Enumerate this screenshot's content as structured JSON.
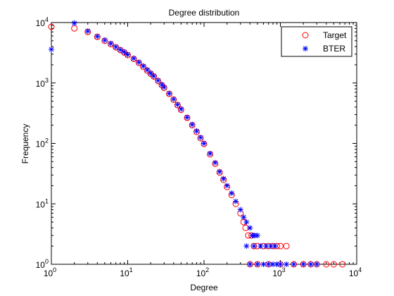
{
  "chart_data": {
    "type": "scatter",
    "title": "Degree distribution",
    "xlabel": "Degree",
    "ylabel": "Frequency",
    "x_scale": "log",
    "y_scale": "log",
    "xlim": [
      1,
      10000
    ],
    "ylim": [
      1,
      10000
    ],
    "grid": false,
    "legend_position": "top-right",
    "x_ticks": [
      {
        "value": 1,
        "base": "10",
        "exp": "0"
      },
      {
        "value": 10,
        "base": "10",
        "exp": "1"
      },
      {
        "value": 100,
        "base": "10",
        "exp": "2"
      },
      {
        "value": 1000,
        "base": "10",
        "exp": "3"
      },
      {
        "value": 10000,
        "base": "10",
        "exp": "4"
      }
    ],
    "y_ticks": [
      {
        "value": 1,
        "base": "10",
        "exp": "0"
      },
      {
        "value": 10,
        "base": "10",
        "exp": "1"
      },
      {
        "value": 100,
        "base": "10",
        "exp": "2"
      },
      {
        "value": 1000,
        "base": "10",
        "exp": "3"
      },
      {
        "value": 10000,
        "base": "10",
        "exp": "4"
      }
    ],
    "series": [
      {
        "name": "Target",
        "marker": "circle",
        "color": "#ff0000",
        "points": [
          [
            1,
            8500
          ],
          [
            2,
            8000
          ],
          [
            3,
            7000
          ],
          [
            4,
            5800
          ],
          [
            5,
            5000
          ],
          [
            6,
            4400
          ],
          [
            7,
            3900
          ],
          [
            8,
            3500
          ],
          [
            9,
            3200
          ],
          [
            10,
            2900
          ],
          [
            12,
            2500
          ],
          [
            14,
            2150
          ],
          [
            16,
            1850
          ],
          [
            18,
            1600
          ],
          [
            20,
            1420
          ],
          [
            22,
            1280
          ],
          [
            25,
            1080
          ],
          [
            28,
            920
          ],
          [
            30,
            830
          ],
          [
            35,
            660
          ],
          [
            40,
            530
          ],
          [
            45,
            430
          ],
          [
            50,
            360
          ],
          [
            60,
            265
          ],
          [
            70,
            200
          ],
          [
            80,
            155
          ],
          [
            90,
            122
          ],
          [
            100,
            98
          ],
          [
            120,
            66
          ],
          [
            140,
            46
          ],
          [
            160,
            33
          ],
          [
            180,
            25
          ],
          [
            200,
            19
          ],
          [
            230,
            14
          ],
          [
            260,
            10
          ],
          [
            300,
            7
          ],
          [
            330,
            5
          ],
          [
            350,
            4
          ],
          [
            380,
            3
          ],
          [
            420,
            3
          ],
          [
            450,
            2
          ],
          [
            500,
            2
          ],
          [
            600,
            2
          ],
          [
            700,
            2
          ],
          [
            800,
            2
          ],
          [
            900,
            2
          ],
          [
            1000,
            2
          ],
          [
            1200,
            2
          ],
          [
            400,
            1
          ],
          [
            500,
            1
          ],
          [
            700,
            1
          ],
          [
            1000,
            1
          ],
          [
            1500,
            1
          ],
          [
            2000,
            1
          ],
          [
            2500,
            1
          ],
          [
            3000,
            1
          ],
          [
            4000,
            1
          ],
          [
            5000,
            1
          ],
          [
            6500,
            1
          ]
        ]
      },
      {
        "name": "BTER",
        "marker": "star",
        "color": "#0000ff",
        "points": [
          [
            1,
            3600
          ],
          [
            2,
            9800
          ],
          [
            3,
            7200
          ],
          [
            4,
            5900
          ],
          [
            5,
            5100
          ],
          [
            6,
            4500
          ],
          [
            7,
            3950
          ],
          [
            8,
            3550
          ],
          [
            9,
            3250
          ],
          [
            10,
            2950
          ],
          [
            12,
            2550
          ],
          [
            14,
            2200
          ],
          [
            16,
            1900
          ],
          [
            18,
            1650
          ],
          [
            20,
            1450
          ],
          [
            22,
            1300
          ],
          [
            25,
            1100
          ],
          [
            28,
            940
          ],
          [
            30,
            850
          ],
          [
            35,
            670
          ],
          [
            40,
            540
          ],
          [
            45,
            440
          ],
          [
            50,
            370
          ],
          [
            60,
            270
          ],
          [
            70,
            205
          ],
          [
            80,
            160
          ],
          [
            90,
            125
          ],
          [
            100,
            100
          ],
          [
            120,
            68
          ],
          [
            140,
            48
          ],
          [
            160,
            34
          ],
          [
            180,
            26
          ],
          [
            200,
            20
          ],
          [
            230,
            15
          ],
          [
            260,
            11
          ],
          [
            300,
            8
          ],
          [
            330,
            6
          ],
          [
            360,
            5
          ],
          [
            400,
            4
          ],
          [
            430,
            3
          ],
          [
            460,
            3
          ],
          [
            500,
            3
          ],
          [
            360,
            2
          ],
          [
            450,
            2
          ],
          [
            550,
            2
          ],
          [
            650,
            2
          ],
          [
            750,
            2
          ],
          [
            850,
            2
          ],
          [
            400,
            1
          ],
          [
            500,
            1
          ],
          [
            600,
            1
          ],
          [
            700,
            1
          ],
          [
            800,
            1
          ],
          [
            900,
            1
          ],
          [
            1000,
            1
          ],
          [
            1200,
            1
          ],
          [
            1500,
            1
          ],
          [
            2000,
            1
          ],
          [
            2500,
            1
          ],
          [
            3000,
            1
          ]
        ]
      }
    ]
  }
}
